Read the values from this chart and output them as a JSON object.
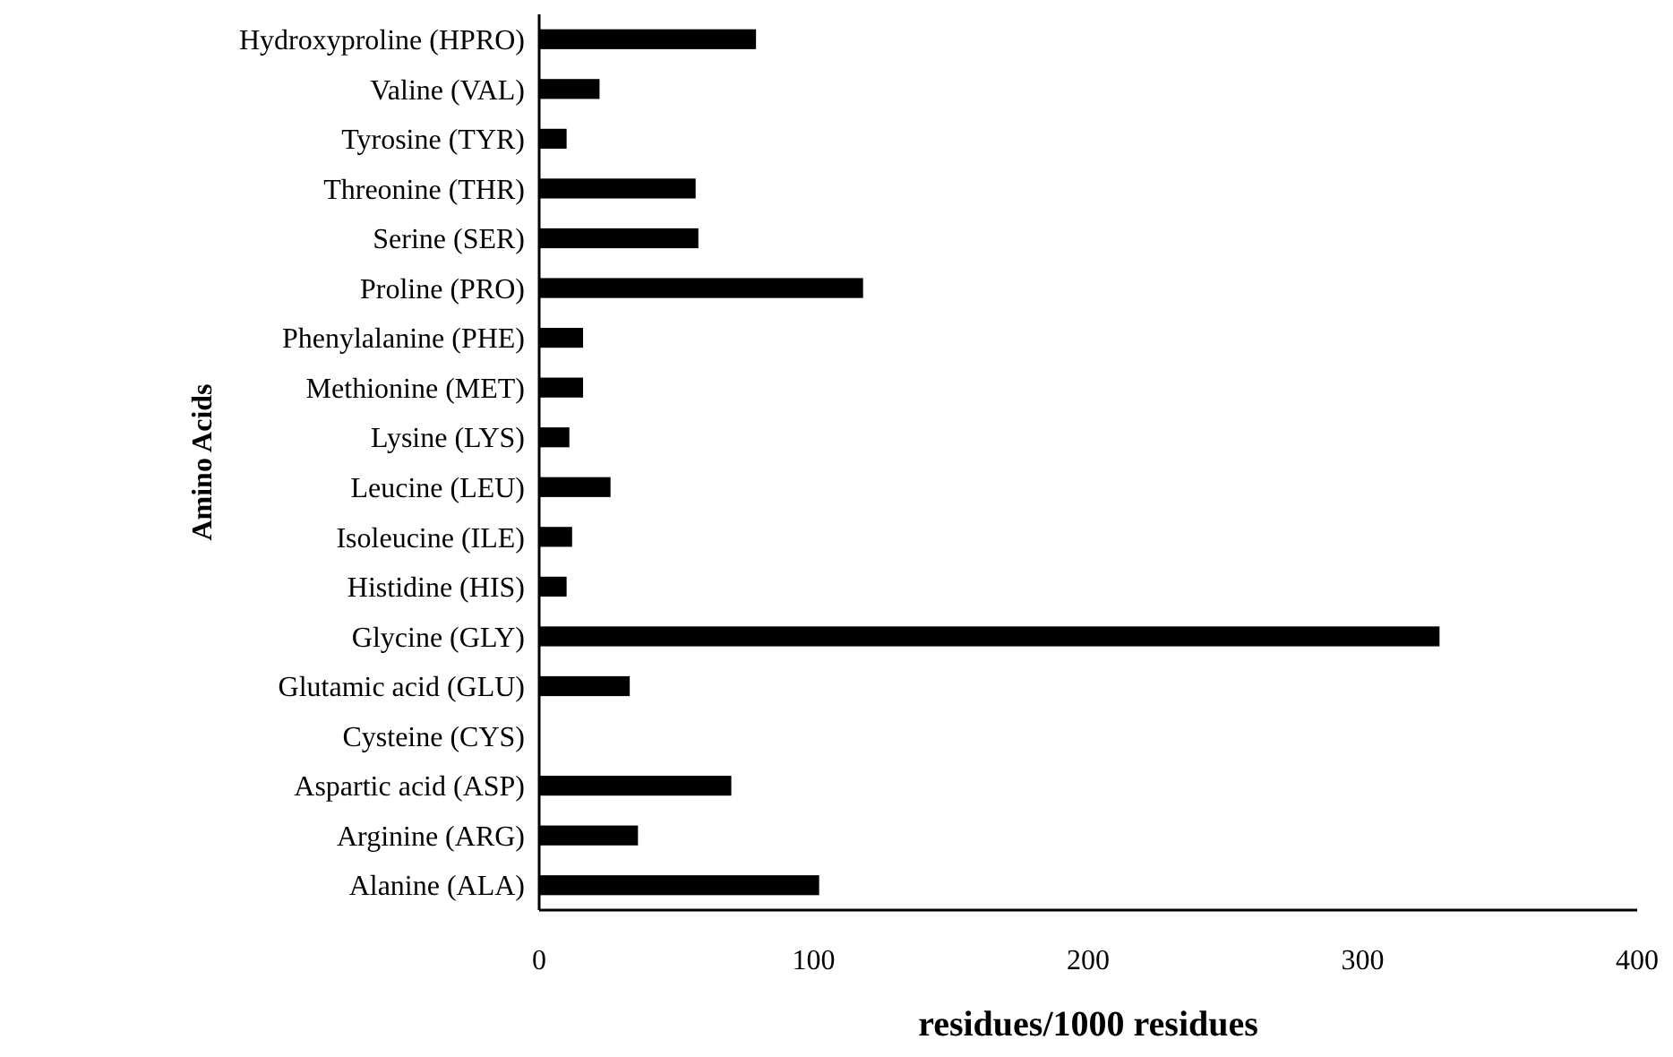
{
  "chart_data": {
    "type": "bar",
    "orientation": "horizontal",
    "xlabel": "residues/1000 residues",
    "ylabel": "Amino Acids",
    "categories": [
      "Hydroxyproline (HPRO)",
      "Valine (VAL)",
      "Tyrosine (TYR)",
      "Threonine (THR)",
      "Serine (SER)",
      "Proline (PRO)",
      "Phenylalanine (PHE)",
      "Methionine (MET)",
      "Lysine (LYS)",
      "Leucine (LEU)",
      "Isoleucine (ILE)",
      "Histidine (HIS)",
      "Glycine (GLY)",
      "Glutamic acid (GLU)",
      "Cysteine (CYS)",
      "Aspartic acid (ASP)",
      "Arginine (ARG)",
      "Alanine (ALA)"
    ],
    "values": [
      79,
      22,
      10,
      57,
      58,
      118,
      16,
      16,
      11,
      26,
      12,
      10,
      328,
      33,
      0,
      70,
      36,
      102
    ],
    "color": "#000000",
    "xlim": [
      0,
      400
    ],
    "xticks": [
      0,
      100,
      200,
      300,
      400
    ],
    "grid": false
  }
}
